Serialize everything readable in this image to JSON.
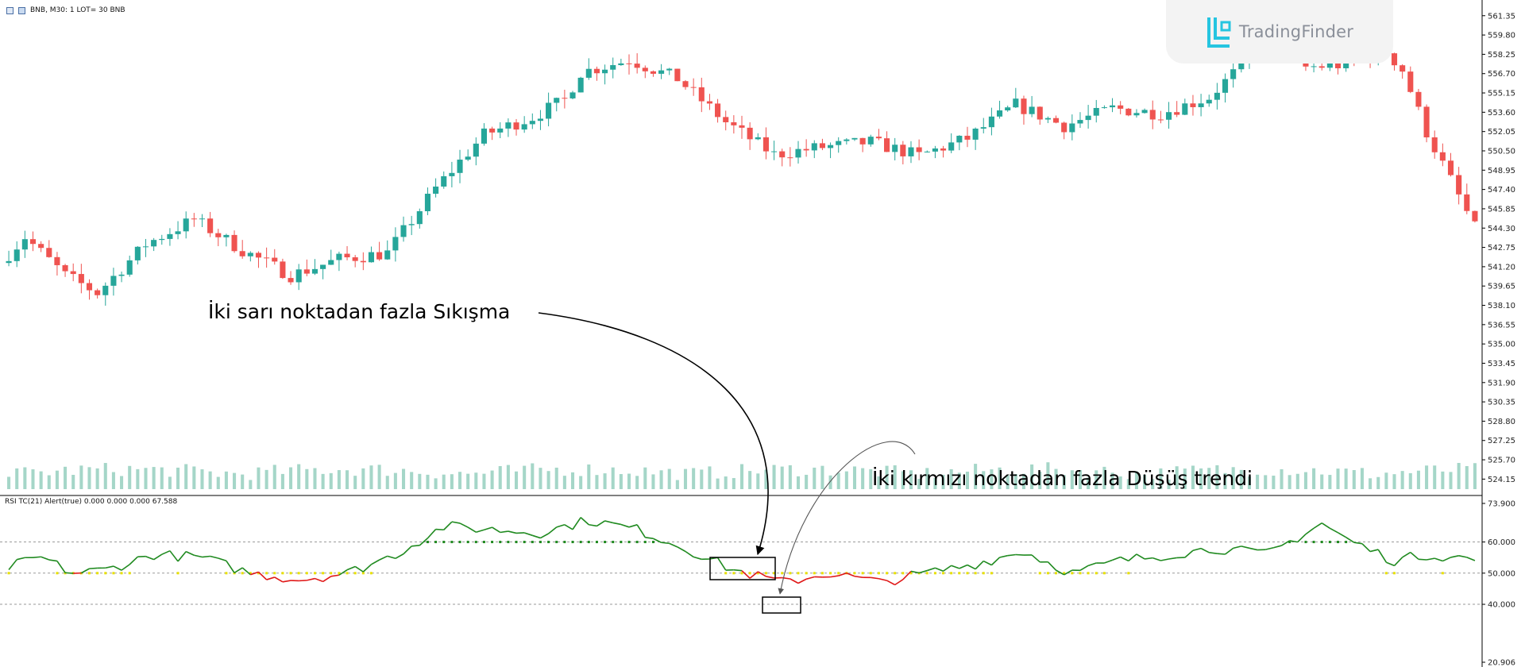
{
  "header": {
    "symbol_text": "BNB, M30:  1 LOT= 30 BNB"
  },
  "rsi_header": {
    "text": "RSI TC(21) Alert(true) 0.000 0.000 0.000 67.588"
  },
  "logo": {
    "name": "TradingFinder",
    "icon": "tradingfinder-logo-icon"
  },
  "annotations": {
    "squeeze": "İki sarı noktadan fazla Sıkışma",
    "downtrend": "İki kırmızı noktadan fazla Düşüş trendi"
  },
  "price_axis": {
    "labels": [
      "561.35",
      "559.80",
      "558.25",
      "556.70",
      "555.15",
      "553.60",
      "552.05",
      "550.50",
      "548.95",
      "547.40",
      "545.85",
      "544.30",
      "542.75",
      "541.20",
      "539.65",
      "538.10",
      "536.55",
      "535.00",
      "533.45",
      "531.90",
      "530.35",
      "528.80",
      "527.25",
      "525.70",
      "524.15"
    ],
    "range": [
      523.6,
      562.1
    ]
  },
  "rsi_axis": {
    "labels": [
      "73.900",
      "60.000",
      "50.000",
      "40.000",
      "20.906"
    ],
    "levels": [
      60,
      50,
      40
    ],
    "range": [
      20.906,
      73.9
    ]
  },
  "colors": {
    "bull": "#26a69a",
    "bear": "#ef5350",
    "rsi_up": "#1f8a1f",
    "rsi_down": "#e01818",
    "squeeze_dot": "#e8e000",
    "volume": "#a5d6c8",
    "grid_dash": "#9a9a9a",
    "separator": "#000000"
  },
  "chart_data": {
    "type": "candlestick",
    "bars": 183,
    "price_anchors": [
      [
        0,
        541.5
      ],
      [
        3,
        543.6
      ],
      [
        8,
        540.5
      ],
      [
        12,
        539.1
      ],
      [
        18,
        543.0
      ],
      [
        24,
        545.0
      ],
      [
        30,
        542.5
      ],
      [
        36,
        540.5
      ],
      [
        42,
        541.8
      ],
      [
        48,
        542.3
      ],
      [
        54,
        547.5
      ],
      [
        60,
        551.8
      ],
      [
        66,
        553.2
      ],
      [
        70,
        554.6
      ],
      [
        72,
        556.8
      ],
      [
        78,
        557.8
      ],
      [
        84,
        556.3
      ],
      [
        90,
        552.8
      ],
      [
        96,
        550.2
      ],
      [
        102,
        550.8
      ],
      [
        108,
        551.2
      ],
      [
        114,
        550.1
      ],
      [
        120,
        551.5
      ],
      [
        126,
        554.2
      ],
      [
        132,
        552.5
      ],
      [
        138,
        553.9
      ],
      [
        144,
        553.5
      ],
      [
        150,
        554.8
      ],
      [
        156,
        558.6
      ],
      [
        159,
        561.0
      ],
      [
        162,
        557.2
      ],
      [
        166,
        557.4
      ],
      [
        172,
        558.5
      ],
      [
        174,
        557.0
      ],
      [
        177,
        552.0
      ],
      [
        183,
        544.3
      ]
    ],
    "rsi_anchors": [
      [
        0,
        52
      ],
      [
        4,
        55
      ],
      [
        8,
        50
      ],
      [
        12,
        51
      ],
      [
        18,
        56
      ],
      [
        24,
        55
      ],
      [
        30,
        50
      ],
      [
        36,
        48
      ],
      [
        42,
        50
      ],
      [
        48,
        56
      ],
      [
        54,
        65
      ],
      [
        60,
        64
      ],
      [
        66,
        63
      ],
      [
        72,
        67
      ],
      [
        78,
        64
      ],
      [
        84,
        58
      ],
      [
        90,
        51
      ],
      [
        96,
        47
      ],
      [
        102,
        50
      ],
      [
        108,
        47
      ],
      [
        114,
        50
      ],
      [
        120,
        53
      ],
      [
        126,
        57
      ],
      [
        132,
        50
      ],
      [
        138,
        54
      ],
      [
        144,
        56
      ],
      [
        150,
        58
      ],
      [
        156,
        56
      ],
      [
        159,
        60
      ],
      [
        163,
        66
      ],
      [
        166,
        61
      ],
      [
        172,
        54
      ],
      [
        176,
        56
      ],
      [
        180,
        55
      ],
      [
        183,
        54
      ]
    ]
  }
}
